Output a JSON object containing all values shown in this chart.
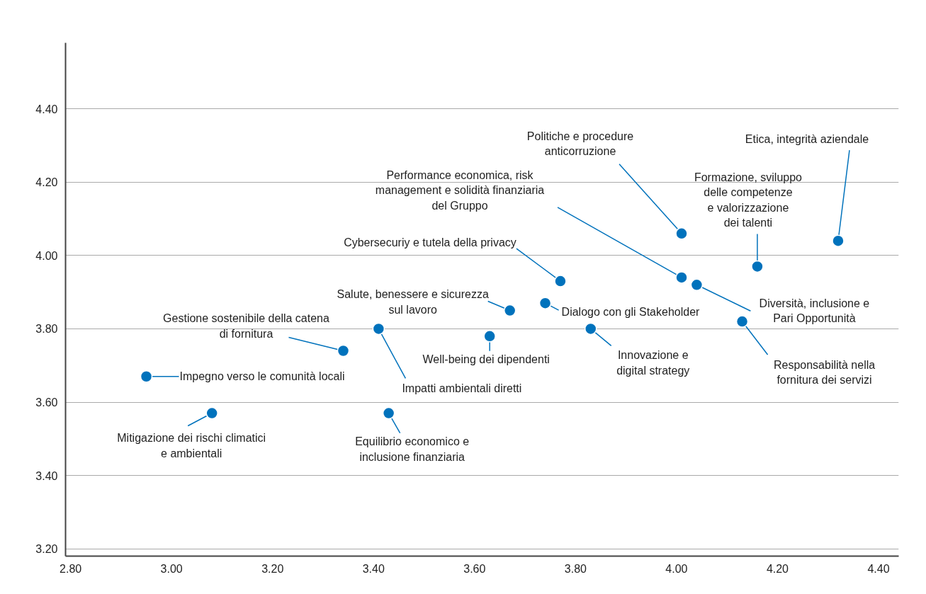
{
  "chart_data": {
    "type": "scatter",
    "marker": "circle",
    "grid": "y",
    "xlim": [
      2.79,
      4.44
    ],
    "ylim": [
      3.18,
      4.58
    ],
    "xticks": [
      {
        "value": 2.8,
        "label": "2.80"
      },
      {
        "value": 3.0,
        "label": "3.00"
      },
      {
        "value": 3.2,
        "label": "3.20"
      },
      {
        "value": 3.4,
        "label": "3.40"
      },
      {
        "value": 3.6,
        "label": "3.60"
      },
      {
        "value": 3.8,
        "label": "3.80"
      },
      {
        "value": 4.0,
        "label": "4.00"
      },
      {
        "value": 4.2,
        "label": "4.20"
      },
      {
        "value": 4.4,
        "label": "4.40"
      }
    ],
    "yticks": [
      {
        "value": 3.2,
        "label": "3.20"
      },
      {
        "value": 3.4,
        "label": "3.40"
      },
      {
        "value": 3.6,
        "label": "3.60"
      },
      {
        "value": 3.8,
        "label": "3.80"
      },
      {
        "value": 4.0,
        "label": "4.00"
      },
      {
        "value": 4.2,
        "label": "4.20"
      },
      {
        "value": 4.4,
        "label": "4.40"
      }
    ],
    "x": [
      2.95,
      3.08,
      3.34,
      3.41,
      3.43,
      3.63,
      3.67,
      3.74,
      3.77,
      3.83,
      4.01,
      4.01,
      4.04,
      4.13,
      4.16,
      4.32
    ],
    "series": [
      {
        "color": "#0072bc",
        "values": [
          3.67,
          3.57,
          3.74,
          3.8,
          3.57,
          3.78,
          3.85,
          3.87,
          3.93,
          3.8,
          3.94,
          4.06,
          3.92,
          3.82,
          3.97,
          4.04
        ]
      }
    ],
    "annotations": [
      {
        "text": "Impegno verso le comunità locali",
        "x": 2.95,
        "y": 3.67
      },
      {
        "text": "Mitigazione dei rischi climatici\ne ambientali",
        "x": 3.08,
        "y": 3.57
      },
      {
        "text": "Gestione sostenibile della catena\ndi fornitura",
        "x": 3.34,
        "y": 3.74
      },
      {
        "text": "Impatti ambientali diretti",
        "x": 3.41,
        "y": 3.8
      },
      {
        "text": "Equilibrio economico e\ninclusione finanziaria",
        "x": 3.43,
        "y": 3.57
      },
      {
        "text": "Well-being dei dipendenti",
        "x": 3.63,
        "y": 3.78
      },
      {
        "text": "Salute, benessere e sicurezza\nsul lavoro",
        "x": 3.67,
        "y": 3.85
      },
      {
        "text": "Dialogo con gli Stakeholder",
        "x": 3.74,
        "y": 3.87
      },
      {
        "text": "Cybersecuriy e tutela della privacy",
        "x": 3.77,
        "y": 3.93
      },
      {
        "text": "Innovazione e\ndigital strategy",
        "x": 3.83,
        "y": 3.8
      },
      {
        "text": "Performance economica, risk\nmanagement e solidità finanziaria\ndel Gruppo",
        "x": 4.01,
        "y": 3.94
      },
      {
        "text": "Politiche e procedure\nanticorruzione",
        "x": 4.01,
        "y": 4.06
      },
      {
        "text": "Diversità, inclusione e\nPari Opportunità",
        "x": 4.04,
        "y": 3.92
      },
      {
        "text": "Responsabilità nella\nfornitura dei servizi",
        "x": 4.13,
        "y": 3.82
      },
      {
        "text": "Formazione, sviluppo\ndelle competenze\ne valorizzazione\ndei talenti",
        "x": 4.16,
        "y": 3.97
      },
      {
        "text": "Etica, integrità aziendale",
        "x": 4.32,
        "y": 4.04
      }
    ]
  }
}
